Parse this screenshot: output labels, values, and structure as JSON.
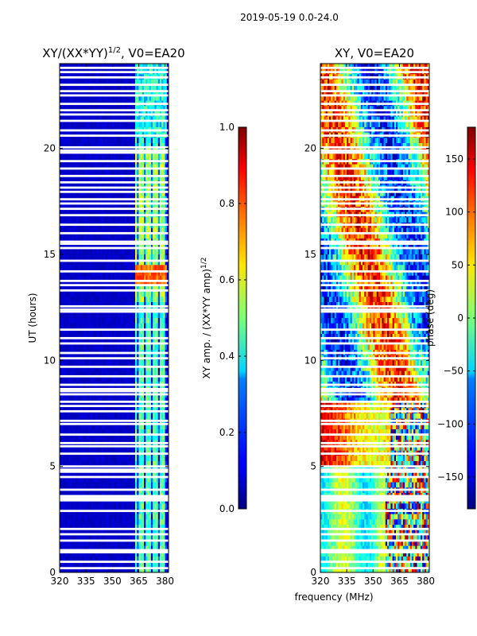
{
  "chart_data": [
    {
      "type": "heatmap",
      "suptitle": "2019-05-19 0.0-24.0",
      "title": "XY/(XX*YY)",
      "title_superscript": "1/2",
      "title_suffix": ", V0=EA20",
      "xlabel": "",
      "ylabel": "UT (hours)",
      "xlim": [
        320,
        382
      ],
      "ylim": [
        0,
        24
      ],
      "xticks": [
        320,
        335,
        350,
        365,
        380
      ],
      "yticks": [
        0,
        5,
        10,
        15,
        20
      ],
      "colorbar": {
        "label": "XY amp. / (XX*YY amp)",
        "label_superscript": "1/2",
        "range": [
          0.0,
          1.0
        ],
        "ticks": [
          "0.0",
          "0.2",
          "0.4",
          "0.6",
          "0.8",
          "1.0"
        ],
        "colormap": "jet"
      },
      "description_values": {
        "background_level": 0.05,
        "active_band_mhz": [
          363,
          381
        ],
        "active_band_level": 0.45,
        "peak_level_hours": [
          13.5,
          14.5
        ],
        "peak_level": 0.7
      }
    },
    {
      "type": "heatmap",
      "title": "XY, V0=EA20",
      "xlabel": "frequency (MHz)",
      "ylabel": "",
      "xlim": [
        320,
        382
      ],
      "ylim": [
        0,
        24
      ],
      "xticks": [
        320,
        335,
        350,
        365,
        380
      ],
      "yticks": [
        0,
        5,
        10,
        15,
        20
      ],
      "colorbar": {
        "label": "phase (deg)",
        "range": [
          -180,
          180
        ],
        "ticks": [
          "-150",
          "-100",
          "-50",
          "0",
          "50",
          "100",
          "150"
        ],
        "colormap": "jet"
      }
    }
  ],
  "flagged_hours": [
    0.2,
    0.5,
    0.95,
    1.0,
    1.05,
    1.5,
    1.8,
    2.05,
    2.9,
    3.4,
    3.5,
    3.6,
    3.9,
    4.5,
    4.75,
    4.85,
    5.0,
    5.6,
    5.95,
    6.1,
    6.5,
    7.0,
    7.15,
    7.6,
    7.85,
    8.05,
    8.4,
    8.55,
    8.65,
    8.85,
    9.25,
    9.7,
    10.1,
    10.35,
    10.8,
    11.05,
    11.45,
    12.3,
    12.4,
    12.55,
    13.3,
    13.55,
    13.75,
    14.2,
    14.7,
    15.3,
    15.5,
    15.6,
    16.0,
    16.4,
    16.85,
    17.15,
    17.4,
    17.6,
    17.95,
    18.15,
    18.4,
    18.7,
    19.05,
    19.4,
    19.8,
    19.9,
    20.05,
    20.6,
    20.85,
    21.3,
    21.6,
    21.8,
    22.1,
    22.5,
    22.7,
    23.0,
    23.35,
    23.6,
    23.8
  ]
}
